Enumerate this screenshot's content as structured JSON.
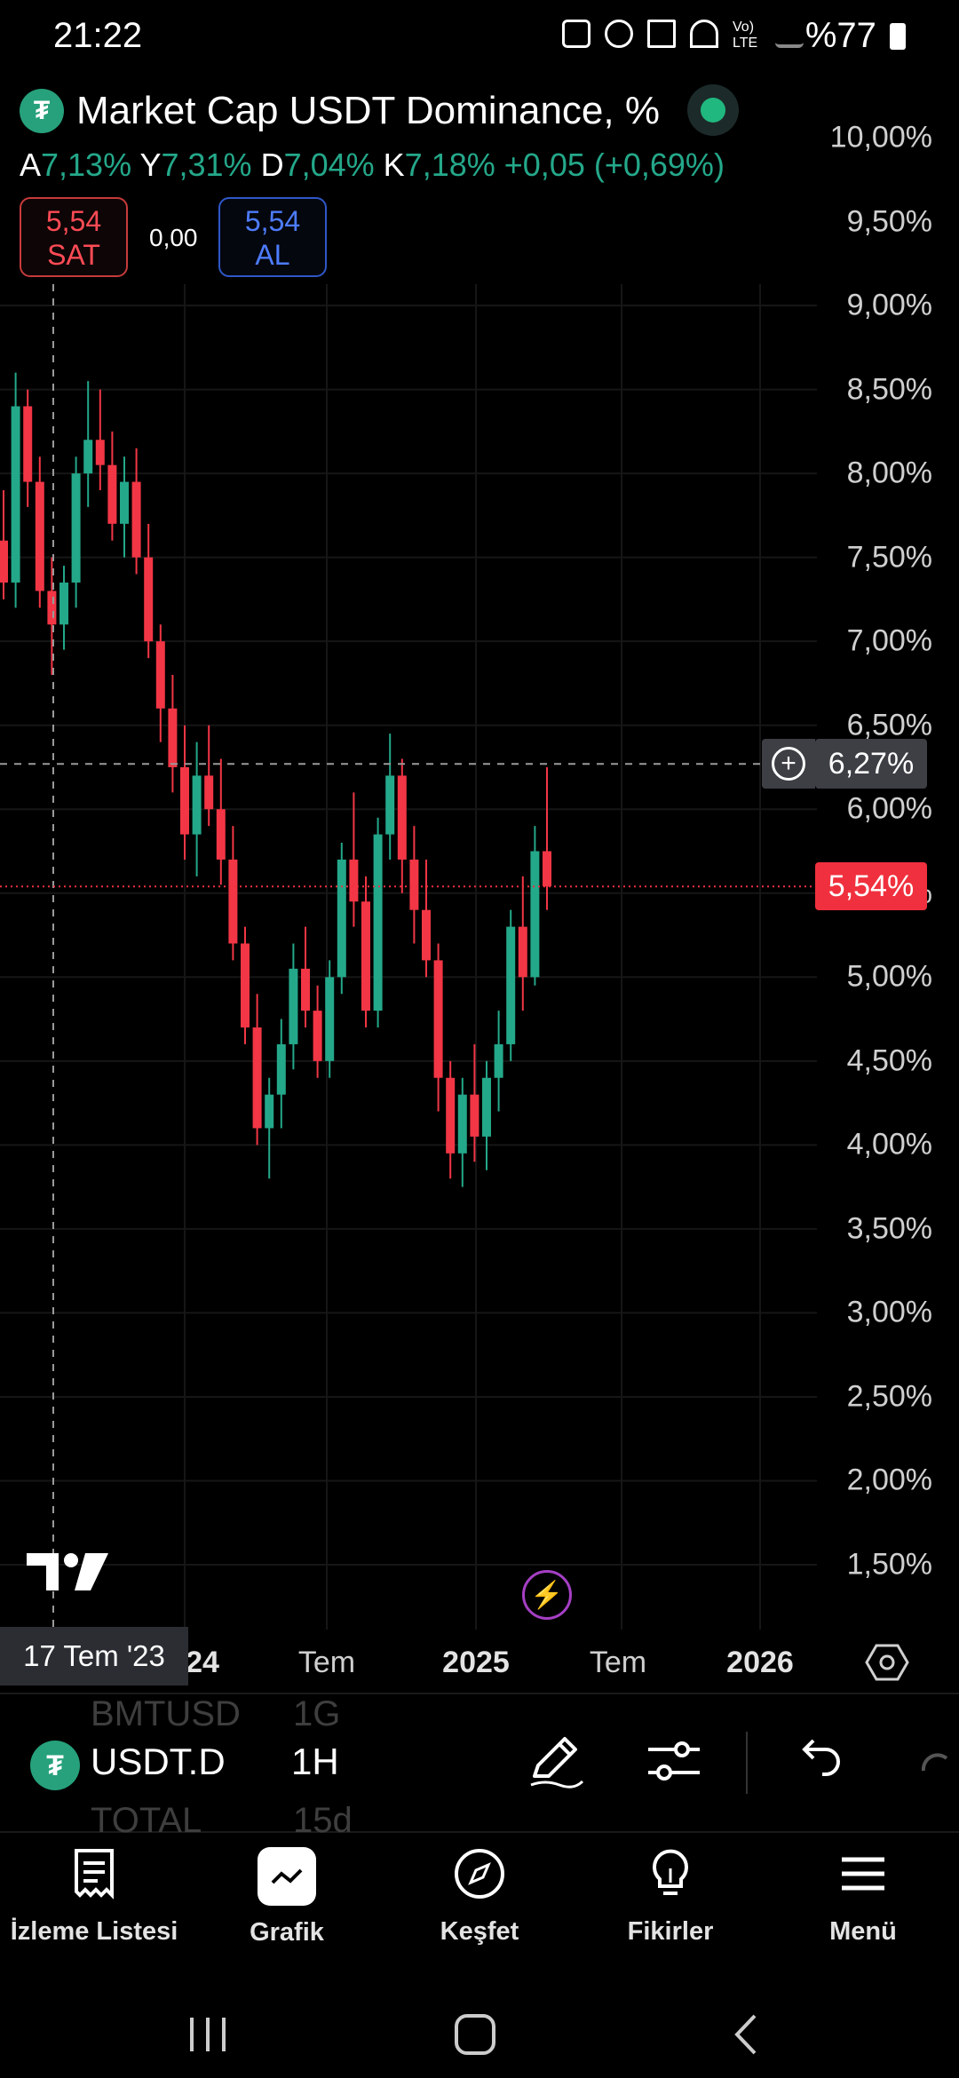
{
  "status_bar": {
    "time": "21:22",
    "battery": "%77"
  },
  "chart_header": {
    "symbol_logo": "tether-logo",
    "title": "Market Cap USDT Dominance, %",
    "ohlc": {
      "open_label": "A",
      "open": "7,13%",
      "high_label": "Y",
      "high": "7,31%",
      "low_label": "D",
      "low": "7,04%",
      "close_label": "K",
      "close": "7,18%",
      "change": "+0,05 (+0,69%)"
    },
    "sell": {
      "price": "5,54",
      "label": "SAT"
    },
    "spread": "0,00",
    "buy": {
      "price": "5,54",
      "label": "AL"
    }
  },
  "price_scale": {
    "ticks": [
      "10,00%",
      "9,50%",
      "9,00%",
      "8,50%",
      "8,00%",
      "7,50%",
      "7,00%",
      "6,50%",
      "6,00%",
      "5,50%",
      "5,00%",
      "4,50%",
      "4,00%",
      "3,50%",
      "3,00%",
      "2,50%",
      "2,00%",
      "1,50%"
    ],
    "crosshair_price": "6,27%",
    "last_price": "5,54%"
  },
  "time_axis": {
    "labels": [
      {
        "text": "24",
        "bold": true
      },
      {
        "text": "Tem",
        "bold": false
      },
      {
        "text": "2025",
        "bold": true
      },
      {
        "text": "Tem",
        "bold": false
      },
      {
        "text": "2026",
        "bold": true
      }
    ],
    "crosshair_date": "17 Tem '23"
  },
  "toolbar": {
    "symbol": "USDT.D",
    "interval": "1H",
    "ghost_prev_symbol": "BMTUSD",
    "ghost_prev_interval": "1G",
    "ghost_next_symbol": "TOTAL",
    "ghost_next_interval": "15d"
  },
  "bottom_nav": [
    {
      "label": "İzleme Listesi",
      "icon": "watchlist-icon"
    },
    {
      "label": "Grafik",
      "icon": "chart-icon"
    },
    {
      "label": "Keşfet",
      "icon": "compass-icon"
    },
    {
      "label": "Fikirler",
      "icon": "lightbulb-icon"
    },
    {
      "label": "Menü",
      "icon": "menu-icon"
    }
  ],
  "colors": {
    "up": "#24a88a",
    "down": "#f23645",
    "last_price": "#f0303e"
  },
  "chart_data": {
    "type": "candlestick",
    "y_range": [
      1.5,
      10.0
    ],
    "y_unit": "%",
    "crosshair_value": 6.27,
    "last_value": 5.54,
    "candles": [
      [
        7.6,
        7.9,
        7.25,
        7.35
      ],
      [
        7.35,
        8.6,
        7.2,
        8.4
      ],
      [
        8.4,
        8.5,
        7.8,
        7.95
      ],
      [
        7.95,
        8.1,
        7.2,
        7.3
      ],
      [
        7.3,
        7.5,
        6.8,
        7.1
      ],
      [
        7.1,
        7.45,
        6.95,
        7.35
      ],
      [
        7.35,
        8.1,
        7.2,
        8.0
      ],
      [
        8.0,
        8.55,
        7.8,
        8.2
      ],
      [
        8.2,
        8.5,
        7.9,
        8.05
      ],
      [
        8.05,
        8.25,
        7.6,
        7.7
      ],
      [
        7.7,
        8.1,
        7.5,
        7.95
      ],
      [
        7.95,
        8.15,
        7.4,
        7.5
      ],
      [
        7.5,
        7.7,
        6.9,
        7.0
      ],
      [
        7.0,
        7.1,
        6.4,
        6.6
      ],
      [
        6.6,
        6.8,
        6.1,
        6.25
      ],
      [
        6.25,
        6.5,
        5.7,
        5.85
      ],
      [
        5.85,
        6.4,
        5.6,
        6.2
      ],
      [
        6.2,
        6.5,
        5.9,
        6.0
      ],
      [
        6.0,
        6.3,
        5.55,
        5.7
      ],
      [
        5.7,
        5.9,
        5.1,
        5.2
      ],
      [
        5.2,
        5.3,
        4.6,
        4.7
      ],
      [
        4.7,
        4.9,
        4.0,
        4.1
      ],
      [
        4.1,
        4.4,
        3.8,
        4.3
      ],
      [
        4.3,
        4.75,
        4.1,
        4.6
      ],
      [
        4.6,
        5.2,
        4.45,
        5.05
      ],
      [
        5.05,
        5.3,
        4.7,
        4.8
      ],
      [
        4.8,
        4.95,
        4.4,
        4.5
      ],
      [
        4.5,
        5.1,
        4.4,
        5.0
      ],
      [
        5.0,
        5.8,
        4.9,
        5.7
      ],
      [
        5.7,
        6.1,
        5.3,
        5.45
      ],
      [
        5.45,
        5.6,
        4.7,
        4.8
      ],
      [
        4.8,
        5.95,
        4.7,
        5.85
      ],
      [
        5.85,
        6.45,
        5.7,
        6.2
      ],
      [
        6.2,
        6.3,
        5.5,
        5.7
      ],
      [
        5.7,
        5.9,
        5.2,
        5.4
      ],
      [
        5.4,
        5.7,
        5.0,
        5.1
      ],
      [
        5.1,
        5.2,
        4.2,
        4.4
      ],
      [
        4.4,
        4.5,
        3.8,
        3.95
      ],
      [
        3.95,
        4.4,
        3.75,
        4.3
      ],
      [
        4.3,
        4.6,
        3.9,
        4.05
      ],
      [
        4.05,
        4.5,
        3.85,
        4.4
      ],
      [
        4.4,
        4.8,
        4.2,
        4.6
      ],
      [
        4.6,
        5.4,
        4.5,
        5.3
      ],
      [
        5.3,
        5.6,
        4.8,
        5.0
      ],
      [
        5.0,
        5.9,
        4.95,
        5.75
      ],
      [
        5.75,
        6.25,
        5.4,
        5.54
      ]
    ]
  }
}
